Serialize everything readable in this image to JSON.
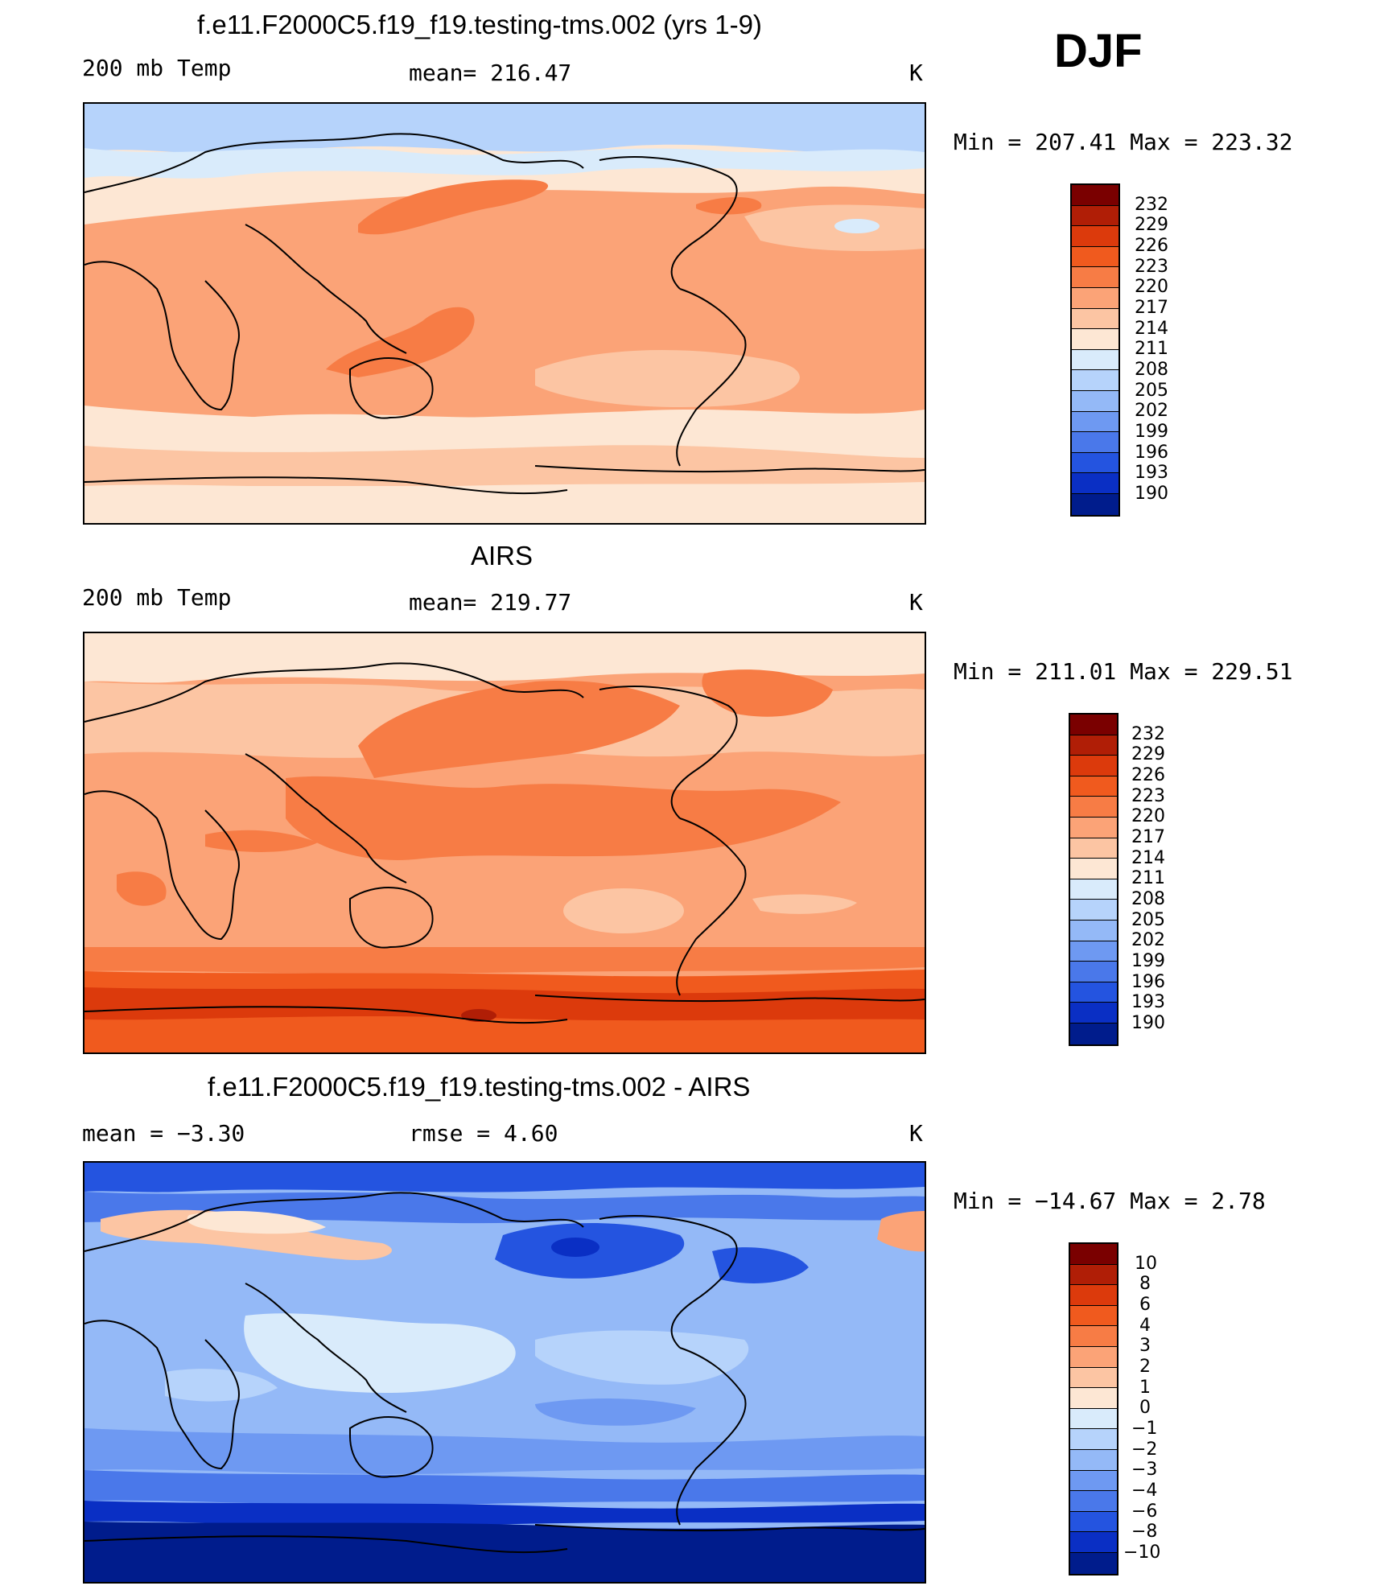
{
  "season": "DJF",
  "panels": [
    {
      "title": "f.e11.F2000C5.f19_f19.testing-tms.002 (yrs 1-9)",
      "left_label": "200 mb Temp",
      "center_label": "mean=  216.47",
      "units": "K",
      "minmax": "Min  =  207.41  Max  =  223.32",
      "variable": "200 mb temperature, model run",
      "colorbar": {
        "labels": [
          "232",
          "229",
          "226",
          "223",
          "220",
          "217",
          "214",
          "211",
          "208",
          "205",
          "202",
          "199",
          "196",
          "193",
          "190"
        ],
        "colors": [
          "#7a0000",
          "#b01e06",
          "#dc3a0c",
          "#f05a1e",
          "#f77c45",
          "#fba377",
          "#fcc5a3",
          "#fde7d4",
          "#d9ebfb",
          "#b6d3fb",
          "#94b9f7",
          "#6e99f2",
          "#4a78ea",
          "#2454e0",
          "#0a2fc4",
          "#001c8c"
        ]
      }
    },
    {
      "title": "AIRS",
      "left_label": "200 mb Temp",
      "center_label": "mean=  219.77",
      "units": "K",
      "minmax": "Min  =  211.01  Max  =  229.51",
      "variable": "200 mb temperature, AIRS observations",
      "colorbar": {
        "labels": [
          "232",
          "229",
          "226",
          "223",
          "220",
          "217",
          "214",
          "211",
          "208",
          "205",
          "202",
          "199",
          "196",
          "193",
          "190"
        ],
        "colors": [
          "#7a0000",
          "#b01e06",
          "#dc3a0c",
          "#f05a1e",
          "#f77c45",
          "#fba377",
          "#fcc5a3",
          "#fde7d4",
          "#d9ebfb",
          "#b6d3fb",
          "#94b9f7",
          "#6e99f2",
          "#4a78ea",
          "#2454e0",
          "#0a2fc4",
          "#001c8c"
        ]
      }
    },
    {
      "title": "f.e11.F2000C5.f19_f19.testing-tms.002 - AIRS",
      "left_label": "mean  =    −3.30",
      "center_label": "rmse  =     4.60",
      "units": "K",
      "minmax": "Min  =  −14.67  Max  =     2.78",
      "variable": "200 mb temperature difference, model minus AIRS",
      "colorbar": {
        "labels": [
          "10",
          "8",
          "6",
          "4",
          "3",
          "2",
          "1",
          "0",
          "−1",
          "−2",
          "−3",
          "−4",
          "−6",
          "−8",
          "−10"
        ],
        "colors": [
          "#7a0000",
          "#b01e06",
          "#dc3a0c",
          "#f05a1e",
          "#f77c45",
          "#fba377",
          "#fcc5a3",
          "#fde7d4",
          "#d9ebfb",
          "#b6d3fb",
          "#94b9f7",
          "#6e99f2",
          "#4a78ea",
          "#2454e0",
          "#0a2fc4",
          "#001c8c"
        ]
      }
    }
  ]
}
